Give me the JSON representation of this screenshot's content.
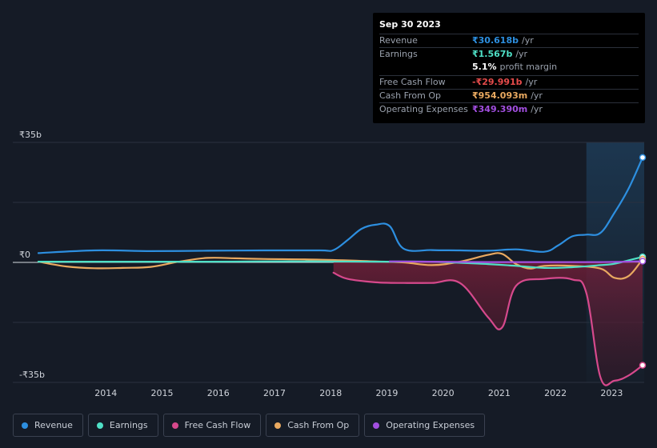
{
  "chart_data": {
    "type": "line",
    "title": "",
    "xlabel": "",
    "ylabel": "",
    "ylim": [
      -35,
      35
    ],
    "y_ticks": [
      {
        "label": "₹35b",
        "value": 35
      },
      {
        "label": "₹0",
        "value": 0
      },
      {
        "label": "-₹35b",
        "value": -35
      }
    ],
    "x_ticks": [
      "2014",
      "2015",
      "2016",
      "2017",
      "2018",
      "2019",
      "2020",
      "2021",
      "2022",
      "2023"
    ],
    "xlim": [
      2013.0,
      2023.75
    ],
    "grid": true,
    "legend_placement": "bottom",
    "highlight_from": 2022.75,
    "series": [
      {
        "name": "Revenue",
        "color": "#2d8fe0",
        "fill": false,
        "x": [
          2013.0,
          2014.0,
          2015.0,
          2016.0,
          2017.0,
          2018.0,
          2018.25,
          2018.5,
          2018.75,
          2019.0,
          2019.25,
          2019.5,
          2020.0,
          2020.5,
          2021.0,
          2021.5,
          2022.0,
          2022.25,
          2022.5,
          2022.75,
          2023.0,
          2023.25,
          2023.5,
          2023.75
        ],
        "values": [
          2.7,
          3.5,
          3.3,
          3.4,
          3.5,
          3.5,
          3.6,
          6.5,
          9.8,
          11.0,
          10.6,
          4.0,
          3.6,
          3.5,
          3.4,
          3.8,
          3.1,
          5.0,
          7.6,
          8.1,
          8.6,
          14.5,
          21.5,
          30.6
        ]
      },
      {
        "name": "Earnings",
        "color": "#4fe0c6",
        "fill": false,
        "x": [
          2013.0,
          2014.0,
          2015.0,
          2016.0,
          2017.0,
          2018.0,
          2019.0,
          2020.0,
          2021.0,
          2021.5,
          2022.0,
          2022.5,
          2023.0,
          2023.25,
          2023.5,
          2023.75
        ],
        "values": [
          0.2,
          0.2,
          0.2,
          0.2,
          0.3,
          0.3,
          0.2,
          0.2,
          -0.5,
          -1.0,
          -1.6,
          -1.4,
          -0.8,
          -0.4,
          0.6,
          1.6
        ]
      },
      {
        "name": "Free Cash Flow",
        "color": "#d6498c",
        "fill": true,
        "x": [
          2018.25,
          2018.5,
          2019.0,
          2019.5,
          2020.0,
          2020.5,
          2021.0,
          2021.25,
          2021.5,
          2022.0,
          2022.5,
          2022.75,
          2023.0,
          2023.25,
          2023.5,
          2023.75
        ],
        "values": [
          -3.0,
          -4.8,
          -5.8,
          -6.0,
          -6.0,
          -6.0,
          -16.0,
          -19.0,
          -6.8,
          -4.8,
          -5.0,
          -9.0,
          -33.5,
          -34.5,
          -33.0,
          -30.0
        ]
      },
      {
        "name": "Cash From Op",
        "color": "#e9a960",
        "fill": false,
        "x": [
          2013.0,
          2013.5,
          2014.0,
          2014.5,
          2015.0,
          2015.5,
          2016.0,
          2016.5,
          2017.0,
          2018.0,
          2019.0,
          2019.5,
          2020.0,
          2020.5,
          2021.0,
          2021.25,
          2021.5,
          2021.75,
          2022.0,
          2022.5,
          2023.0,
          2023.25,
          2023.5,
          2023.75
        ],
        "values": [
          0.2,
          -1.2,
          -1.7,
          -1.6,
          -1.3,
          0.2,
          1.3,
          1.2,
          1.0,
          0.8,
          0.3,
          0.0,
          -0.8,
          0.2,
          2.2,
          2.5,
          -0.5,
          -1.8,
          -1.0,
          -1.0,
          -1.8,
          -4.5,
          -4.0,
          0.95
        ]
      },
      {
        "name": "Operating Expenses",
        "color": "#a24fe0",
        "fill": false,
        "x": [
          2019.25,
          2020.0,
          2021.0,
          2022.0,
          2022.5,
          2023.0,
          2023.5,
          2023.75
        ],
        "values": [
          0.3,
          0.2,
          0.1,
          0.1,
          0.1,
          0.1,
          0.2,
          0.35
        ]
      }
    ]
  },
  "tooltip": {
    "date": "Sep 30 2023",
    "rows": [
      {
        "label": "Revenue",
        "value": "₹30.618b",
        "unit": "/yr",
        "color": "#2d8fe0"
      },
      {
        "label": "Earnings",
        "value": "₹1.567b",
        "unit": "/yr",
        "color": "#4fe0c6"
      },
      {
        "label": "",
        "value": "5.1%",
        "unit": "profit margin",
        "color": "#ffffff"
      },
      {
        "label": "Free Cash Flow",
        "value": "-₹29.991b",
        "unit": "/yr",
        "color": "#e64b4b"
      },
      {
        "label": "Cash From Op",
        "value": "₹954.093m",
        "unit": "/yr",
        "color": "#e9a960"
      },
      {
        "label": "Operating Expenses",
        "value": "₹349.390m",
        "unit": "/yr",
        "color": "#a24fe0"
      }
    ]
  },
  "legend": [
    {
      "label": "Revenue",
      "color": "#2d8fe0"
    },
    {
      "label": "Earnings",
      "color": "#4fe0c6"
    },
    {
      "label": "Free Cash Flow",
      "color": "#d6498c"
    },
    {
      "label": "Cash From Op",
      "color": "#e9a960"
    },
    {
      "label": "Operating Expenses",
      "color": "#a24fe0"
    }
  ]
}
